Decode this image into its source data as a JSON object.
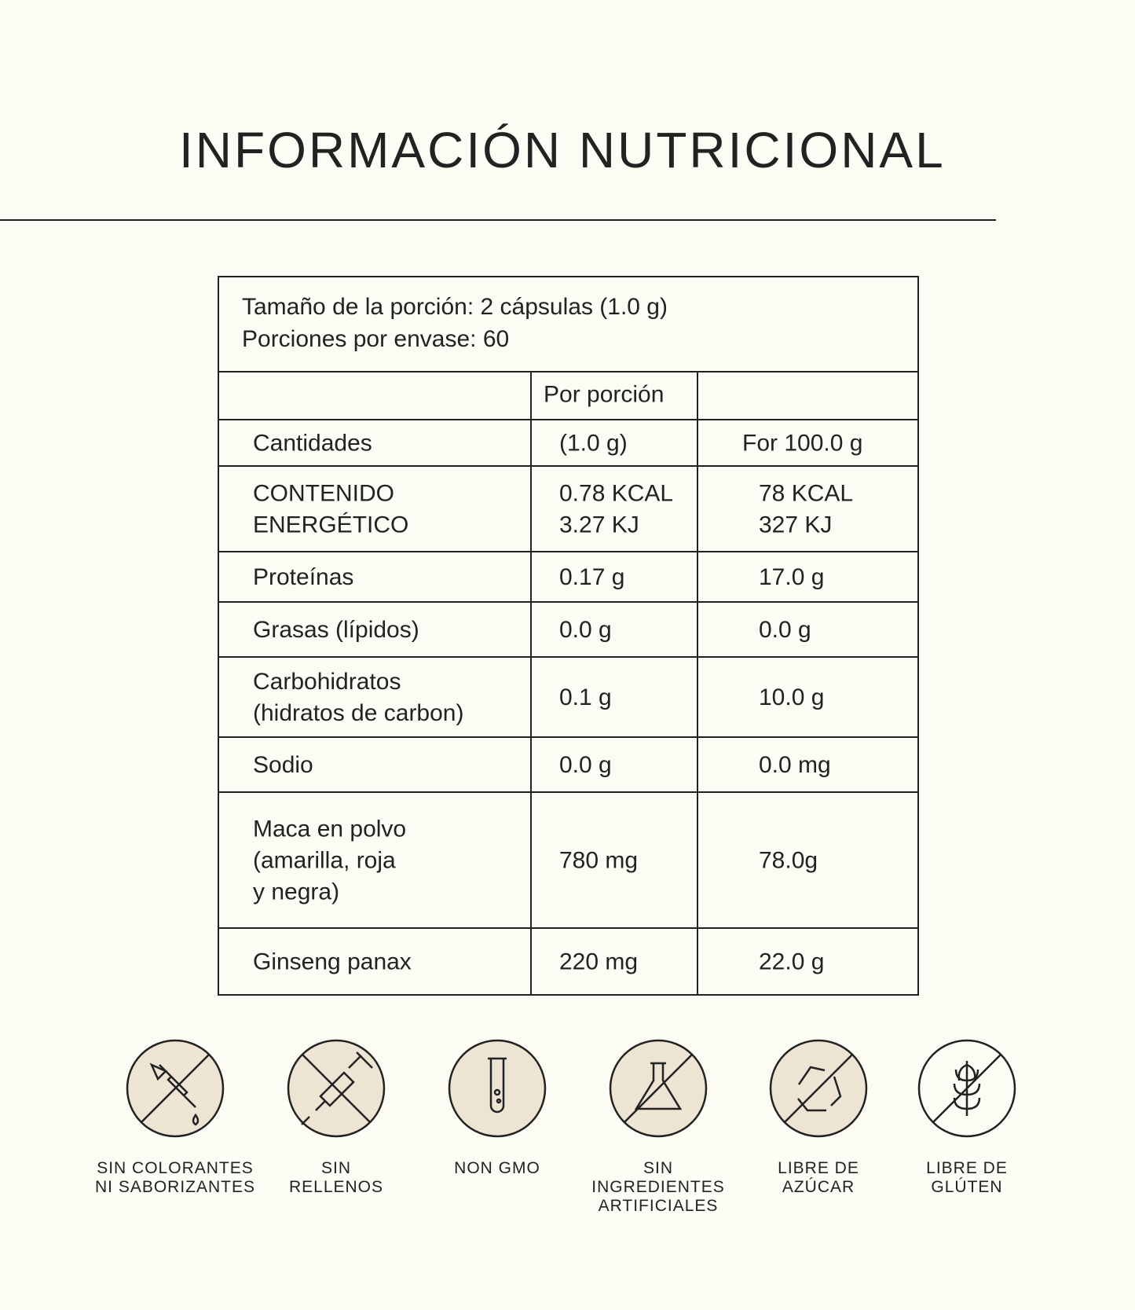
{
  "header": {
    "title": "INFORMACIÓN NUTRICIONAL"
  },
  "serving": [
    "Tamaño de la porción: 2 cápsulas (1.0 g)",
    "Porciones por envase: 60"
  ],
  "table": {
    "per_portion_header": "Por porción",
    "rows": [
      {
        "name": [
          "Cantidades"
        ],
        "per": [
          "(1.0 g)"
        ],
        "per100": [
          "For 100.0 g"
        ]
      },
      {
        "name": [
          "CONTENIDO",
          "ENERGÉTICO"
        ],
        "per": [
          "0.78 KCAL",
          "3.27 KJ"
        ],
        "per100": [
          "78 KCAL",
          "327 KJ"
        ]
      },
      {
        "name": [
          "Proteínas"
        ],
        "per": [
          "0.17 g"
        ],
        "per100": [
          "17.0 g"
        ]
      },
      {
        "name": [
          "Grasas (lípidos)"
        ],
        "per": [
          "0.0 g"
        ],
        "per100": [
          "0.0 g"
        ]
      },
      {
        "name": [
          "Carbohidratos",
          "(hidratos de carbon)"
        ],
        "per": [
          "0.1 g"
        ],
        "per100": [
          "10.0 g"
        ]
      },
      {
        "name": [
          "Sodio"
        ],
        "per": [
          "0.0 g"
        ],
        "per100": [
          "0.0 mg"
        ]
      },
      {
        "name": [
          "Maca en polvo",
          "(amarilla, roja",
          "y negra)"
        ],
        "per": [
          "780 mg"
        ],
        "per100": [
          "78.0g"
        ]
      },
      {
        "name": [
          "Ginseng panax"
        ],
        "per": [
          "220 mg"
        ],
        "per100": [
          "22.0 g"
        ]
      }
    ]
  },
  "badges": [
    [
      "SIN COLORANTES",
      "NI SABORIZANTES"
    ],
    [
      "SIN",
      "RELLENOS"
    ],
    [
      "NON GMO"
    ],
    [
      "SIN",
      "INGREDIENTES",
      "ARTIFICIALES"
    ],
    [
      "LIBRE DE",
      "AZÚCAR"
    ],
    [
      "LIBRE DE",
      "GLÚTEN"
    ]
  ]
}
